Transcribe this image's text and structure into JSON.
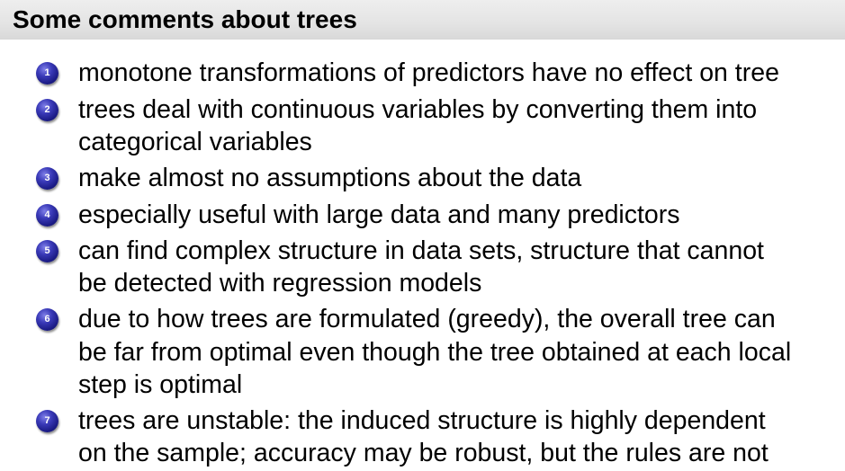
{
  "slide": {
    "title": "Some comments about trees",
    "items": [
      {
        "number": "1",
        "lines": [
          "monotone transformations of predictors have no effect on tree"
        ]
      },
      {
        "number": "2",
        "lines": [
          "trees deal with continuous variables by converting them into",
          "categorical variables"
        ]
      },
      {
        "number": "3",
        "lines": [
          "make almost no assumptions about the data"
        ]
      },
      {
        "number": "4",
        "lines": [
          "especially useful with large data and many predictors"
        ]
      },
      {
        "number": "5",
        "lines": [
          "can find complex structure in data sets, structure that cannot",
          "be detected with regression models"
        ]
      },
      {
        "number": "6",
        "lines": [
          "due to how trees are formulated (greedy), the overall tree can",
          "be far from optimal even though the tree obtained at each local",
          "step is optimal"
        ]
      },
      {
        "number": "7",
        "lines": [
          "trees are unstable: the induced structure is highly dependent",
          "on the sample; accuracy may be robust, but the rules are not"
        ]
      }
    ]
  }
}
